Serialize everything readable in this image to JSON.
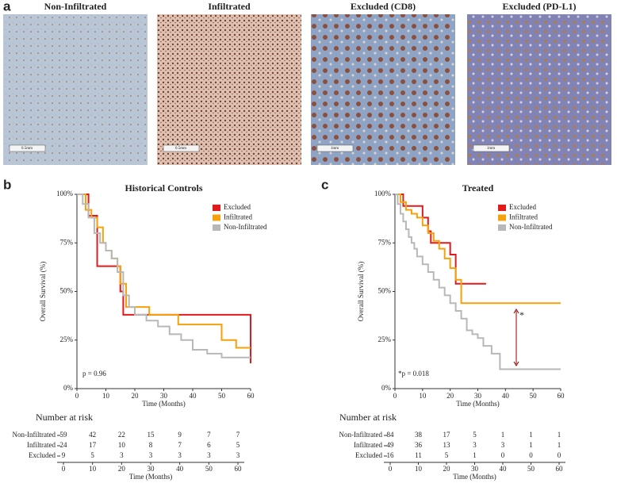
{
  "panel_labels": [
    "a",
    "b",
    "c"
  ],
  "images": [
    {
      "caption": "Non-Infiltrated",
      "scale": "0.5mm"
    },
    {
      "caption": "Infiltrated",
      "scale": "0.5mm"
    },
    {
      "caption": "Excluded (CD8)",
      "scale": "1mm"
    },
    {
      "caption": "Excluded (PD-L1)",
      "scale": "1mm"
    }
  ],
  "chart_data": [
    {
      "type": "step",
      "title": "Historical Controls",
      "xlabel": "Time (Months)",
      "ylabel": "Overall Survival (%)",
      "xlim": [
        0,
        60
      ],
      "ylim": [
        0,
        100
      ],
      "xticks": [
        0,
        10,
        20,
        30,
        40,
        50,
        60
      ],
      "yticks": [
        {
          "value": 0,
          "label": "0%"
        },
        {
          "value": 25,
          "label": "25%"
        },
        {
          "value": 50,
          "label": "50%"
        },
        {
          "value": 75,
          "label": "75%"
        },
        {
          "value": 100,
          "label": "100%"
        }
      ],
      "series": [
        {
          "name": "Excluded",
          "color": "#e31a1c",
          "x": [
            0,
            4,
            7,
            15,
            16,
            60
          ],
          "values": [
            100,
            89,
            63,
            50,
            38,
            13
          ]
        },
        {
          "name": "Infiltrated",
          "color": "#f5a10a",
          "x": [
            0,
            3,
            5,
            7,
            9,
            10,
            12,
            14,
            15,
            17,
            25,
            35,
            50,
            55,
            60
          ],
          "values": [
            100,
            92,
            88,
            83,
            75,
            71,
            67,
            63,
            54,
            42,
            38,
            33,
            25,
            21,
            21
          ]
        },
        {
          "name": "Non-Infiltrated",
          "color": "#b8b8b8",
          "x": [
            0,
            2,
            4,
            6,
            8,
            10,
            12,
            14,
            16,
            18,
            20,
            24,
            28,
            32,
            36,
            40,
            45,
            50,
            60
          ],
          "values": [
            100,
            95,
            88,
            80,
            75,
            71,
            67,
            60,
            48,
            42,
            38,
            35,
            32,
            28,
            25,
            20,
            18,
            16,
            16
          ]
        }
      ],
      "annotation": "p = 0.96",
      "risk_table": {
        "title": "Number at risk",
        "xlabel": "Time (Months)",
        "rows": [
          {
            "name": "Non-Infiltrated",
            "values": [
              59,
              42,
              22,
              15,
              9,
              7,
              7
            ]
          },
          {
            "name": "Infiltrated",
            "values": [
              24,
              17,
              10,
              8,
              7,
              6,
              5
            ]
          },
          {
            "name": "Excluded",
            "values": [
              9,
              5,
              3,
              3,
              3,
              3,
              3
            ]
          }
        ]
      }
    },
    {
      "type": "step",
      "title": "Treated",
      "xlabel": "Time (Months)",
      "ylabel": "Overall Survival (%)",
      "xlim": [
        0,
        60
      ],
      "ylim": [
        0,
        100
      ],
      "xticks": [
        0,
        10,
        20,
        30,
        40,
        50,
        60
      ],
      "yticks": [
        {
          "value": 0,
          "label": "0%"
        },
        {
          "value": 25,
          "label": "25%"
        },
        {
          "value": 50,
          "label": "50%"
        },
        {
          "value": 75,
          "label": "75%"
        },
        {
          "value": 100,
          "label": "100%"
        }
      ],
      "series": [
        {
          "name": "Excluded",
          "color": "#e31a1c",
          "x": [
            0,
            3,
            10,
            12,
            13,
            20,
            22,
            33
          ],
          "values": [
            100,
            94,
            88,
            81,
            75,
            69,
            54,
            54
          ]
        },
        {
          "name": "Infiltrated",
          "color": "#f5a10a",
          "x": [
            0,
            2,
            4,
            6,
            8,
            10,
            12,
            14,
            16,
            18,
            20,
            22,
            24,
            60
          ],
          "values": [
            100,
            96,
            92,
            90,
            88,
            84,
            80,
            76,
            72,
            67,
            62,
            56,
            44,
            44
          ]
        },
        {
          "name": "Non-Infiltrated",
          "color": "#b8b8b8",
          "x": [
            0,
            1,
            2,
            3,
            4,
            5,
            6,
            7,
            8,
            10,
            12,
            14,
            16,
            18,
            20,
            22,
            24,
            26,
            28,
            30,
            32,
            35,
            38,
            60
          ],
          "values": [
            100,
            95,
            90,
            86,
            82,
            78,
            75,
            72,
            68,
            64,
            60,
            56,
            52,
            48,
            44,
            40,
            36,
            30,
            28,
            26,
            22,
            18,
            10,
            10
          ]
        }
      ],
      "annotation": "*p = 0.018",
      "marker": "*",
      "risk_table": {
        "title": "Number at risk",
        "xlabel": "Time (Months)",
        "rows": [
          {
            "name": "Non-Infiltrated",
            "values": [
              84,
              38,
              17,
              5,
              1,
              1,
              1
            ]
          },
          {
            "name": "Infiltrated",
            "values": [
              49,
              36,
              13,
              3,
              3,
              1,
              1
            ]
          },
          {
            "name": "Excluded",
            "values": [
              16,
              11,
              5,
              1,
              0,
              0,
              0
            ]
          }
        ]
      }
    }
  ]
}
